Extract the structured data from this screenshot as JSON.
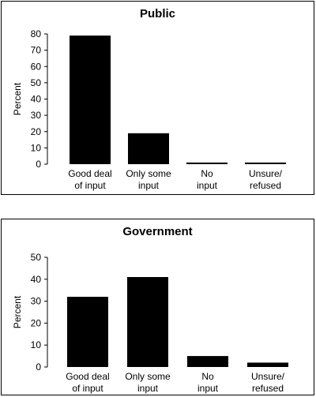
{
  "chart_data": [
    {
      "type": "bar",
      "title": "Public",
      "ylabel": "Percent",
      "xlabel": "",
      "ylim": [
        0,
        80
      ],
      "yticks": [
        0,
        10,
        20,
        30,
        40,
        50,
        60,
        70,
        80
      ],
      "categories": [
        [
          "Good deal",
          "of input"
        ],
        [
          "Only some",
          "input"
        ],
        [
          "No",
          "input"
        ],
        [
          "Unsure/",
          "refused"
        ]
      ],
      "values": [
        79,
        19,
        1,
        1
      ],
      "bar_color": "#000000",
      "grid": false
    },
    {
      "type": "bar",
      "title": "Government",
      "ylabel": "Percent",
      "xlabel": "",
      "ylim": [
        0,
        50
      ],
      "yticks": [
        0,
        10,
        20,
        30,
        40,
        50
      ],
      "categories": [
        [
          "Good deal",
          "of input"
        ],
        [
          "Only some",
          "input"
        ],
        [
          "No",
          "input"
        ],
        [
          "Unsure/",
          "refused"
        ]
      ],
      "values": [
        32,
        41,
        5,
        2
      ],
      "bar_color": "#000000",
      "grid": false
    }
  ]
}
